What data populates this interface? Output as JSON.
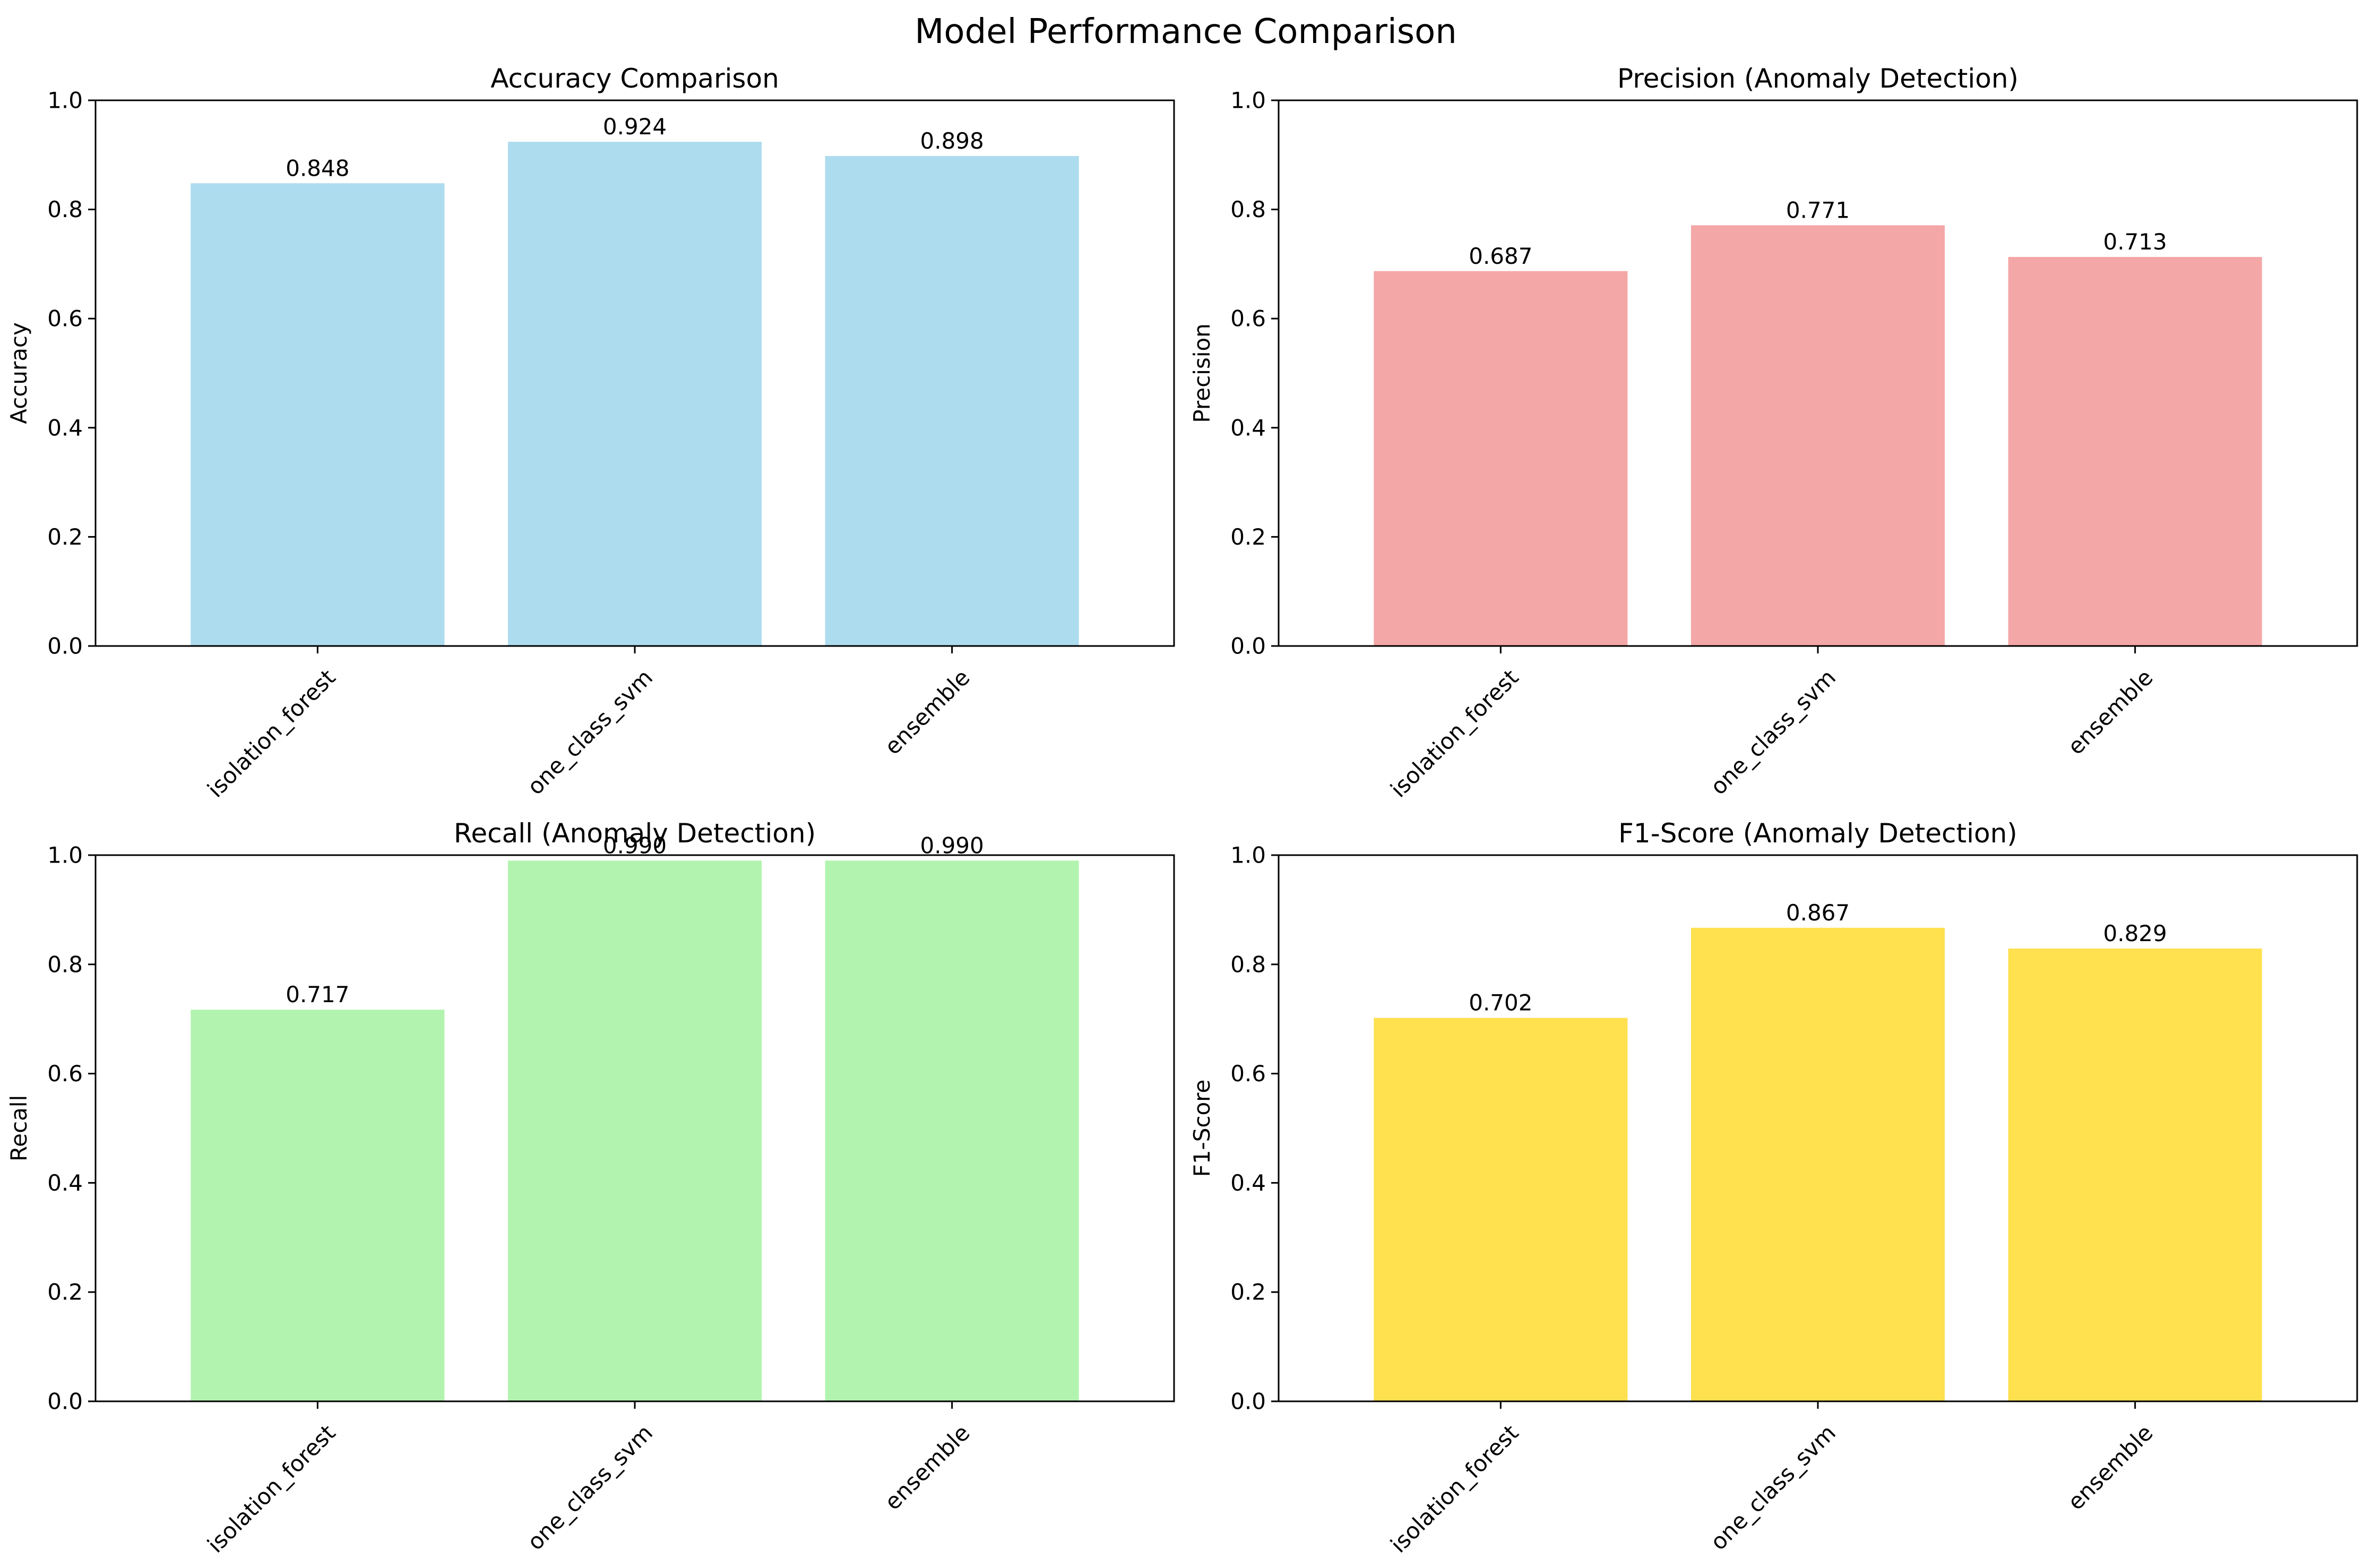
{
  "figure_title": "Model Performance Comparison",
  "chart_data": [
    {
      "type": "bar",
      "title": "Accuracy Comparison",
      "xlabel": "",
      "ylabel": "Accuracy",
      "categories": [
        "isolation_forest",
        "one_class_svm",
        "ensemble"
      ],
      "values": [
        0.848,
        0.924,
        0.898
      ],
      "value_labels": [
        "0.848",
        "0.924",
        "0.898"
      ],
      "ylim": [
        0,
        1
      ],
      "yticks": [
        "0.0",
        "0.2",
        "0.4",
        "0.6",
        "0.8",
        "1.0"
      ],
      "color": "#ADDCEE",
      "grid": false
    },
    {
      "type": "bar",
      "title": "Precision (Anomaly Detection)",
      "xlabel": "",
      "ylabel": "Precision",
      "categories": [
        "isolation_forest",
        "one_class_svm",
        "ensemble"
      ],
      "values": [
        0.687,
        0.771,
        0.713
      ],
      "value_labels": [
        "0.687",
        "0.771",
        "0.713"
      ],
      "ylim": [
        0,
        1
      ],
      "yticks": [
        "0.0",
        "0.2",
        "0.4",
        "0.6",
        "0.8",
        "1.0"
      ],
      "color": "#F4A7A7",
      "grid": false
    },
    {
      "type": "bar",
      "title": "Recall (Anomaly Detection)",
      "xlabel": "",
      "ylabel": "Recall",
      "categories": [
        "isolation_forest",
        "one_class_svm",
        "ensemble"
      ],
      "values": [
        0.717,
        0.99,
        0.99
      ],
      "value_labels": [
        "0.717",
        "0.990",
        "0.990"
      ],
      "ylim": [
        0,
        1
      ],
      "yticks": [
        "0.0",
        "0.2",
        "0.4",
        "0.6",
        "0.8",
        "1.0"
      ],
      "color": "#B2F4AF",
      "grid": false
    },
    {
      "type": "bar",
      "title": "F1-Score (Anomaly Detection)",
      "xlabel": "",
      "ylabel": "F1-Score",
      "categories": [
        "isolation_forest",
        "one_class_svm",
        "ensemble"
      ],
      "values": [
        0.702,
        0.867,
        0.829
      ],
      "value_labels": [
        "0.702",
        "0.867",
        "0.829"
      ],
      "ylim": [
        0,
        1
      ],
      "yticks": [
        "0.0",
        "0.2",
        "0.4",
        "0.6",
        "0.8",
        "1.0"
      ],
      "color": "#FFE04F",
      "grid": false
    }
  ]
}
